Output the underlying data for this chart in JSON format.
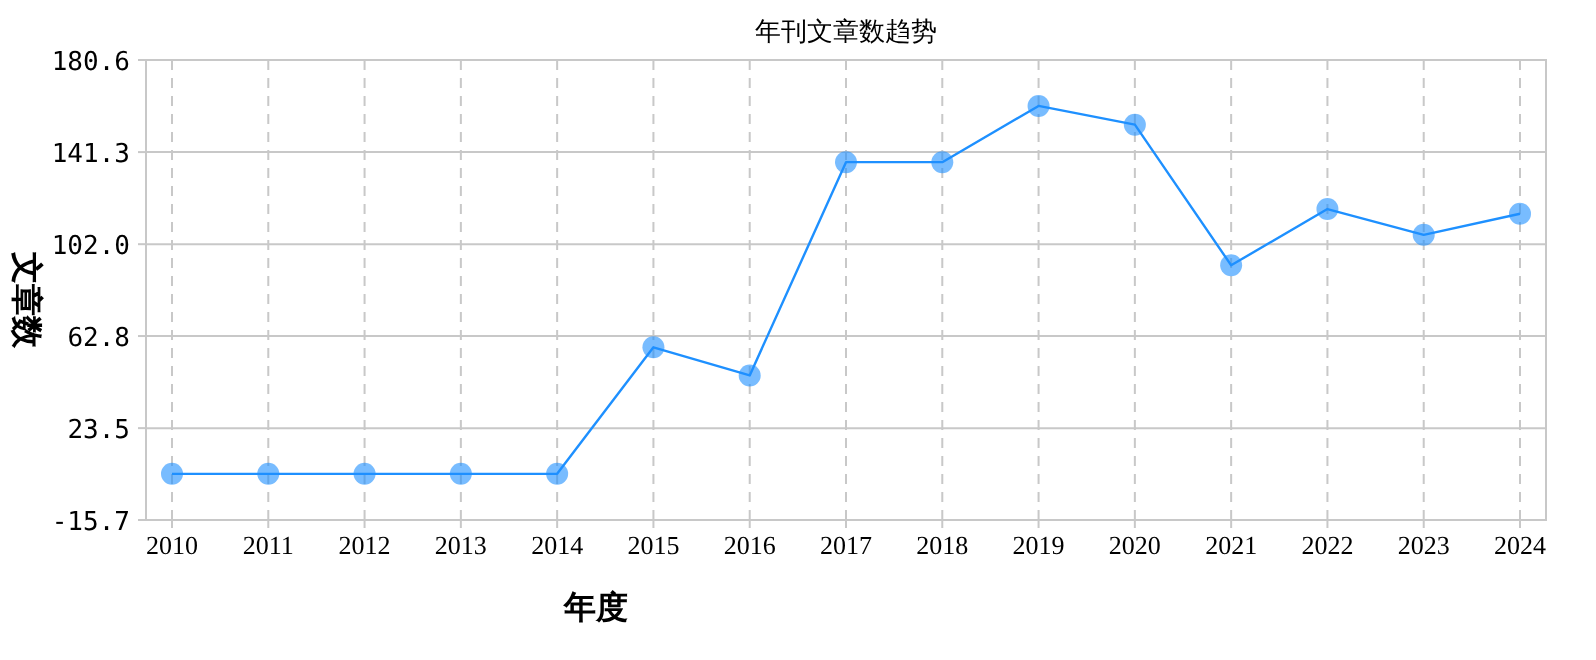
{
  "chart_data": {
    "type": "line",
    "title": "年刊文章数趋势",
    "xlabel": "年度",
    "ylabel": "文章数",
    "categories": [
      "2010",
      "2011",
      "2012",
      "2013",
      "2014",
      "2015",
      "2016",
      "2017",
      "2018",
      "2019",
      "2020",
      "2021",
      "2022",
      "2023",
      "2024"
    ],
    "series": [
      {
        "color": "#1e90ff",
        "values": [
          4,
          4,
          4,
          4,
          4,
          58,
          46,
          137,
          137,
          161,
          153,
          93,
          117,
          106,
          115
        ]
      }
    ],
    "ylim": [
      -15.7,
      180.6
    ],
    "yticks": [
      -15.7,
      23.5,
      62.8,
      {
        "value": 102,
        "label": "102.0"
      },
      141.3,
      180.6
    ],
    "grid": true,
    "marker": "circle",
    "line_style": "solid"
  }
}
